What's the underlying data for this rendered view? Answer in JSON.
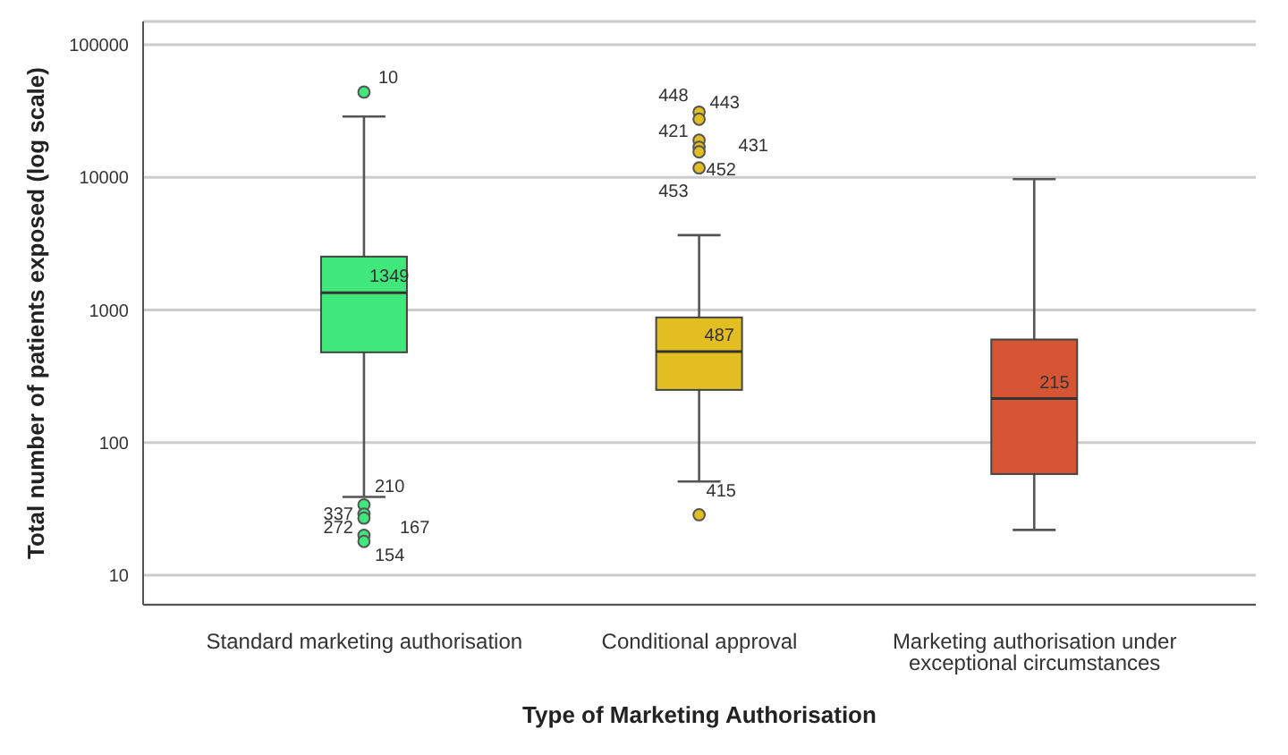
{
  "chart_data": {
    "type": "box",
    "xlabel": "Type of Marketing Authorisation",
    "ylabel": "Total number of patients exposed (log scale)",
    "categories": [
      "Standard marketing authorisation",
      "Conditional approval",
      "Marketing authorisation under exceptional circumstances"
    ],
    "colors": [
      "#40e87c",
      "#e2be22",
      "#d65535"
    ],
    "boxes": [
      {
        "low": 39,
        "q1": 480,
        "median": 1349,
        "q3": 2530,
        "high": 28800,
        "outliers": [
          44000,
          34,
          29,
          27,
          20,
          18
        ]
      },
      {
        "low": 51,
        "q1": 250,
        "median": 487,
        "q3": 880,
        "high": 3670,
        "outliers": [
          31100,
          27500,
          19100,
          16900,
          15600,
          11800,
          28.6
        ]
      },
      {
        "low": 22,
        "q1": 58,
        "median": 215,
        "q3": 600,
        "high": 9700
      }
    ],
    "log": true,
    "grid": "y",
    "ylim": [
      6,
      150000
    ],
    "yticks": [
      10,
      100,
      1000,
      10000,
      100000
    ],
    "annotations": [
      "10",
      "210",
      "337",
      "272",
      "167",
      "154",
      "448",
      "443",
      "421",
      "431",
      "452",
      "453",
      "415",
      "1349",
      "487",
      "215"
    ]
  }
}
